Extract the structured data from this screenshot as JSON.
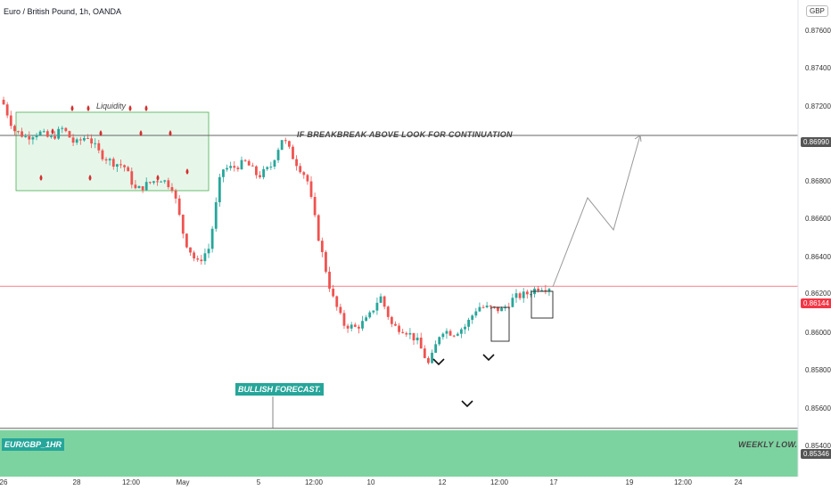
{
  "header": {
    "title": "Euro / British Pound, 1h, OANDA"
  },
  "currency_badge": "GBP",
  "colors": {
    "up": "#26a69a",
    "down": "#ef5350",
    "zone_green": "#7dd3a0",
    "zone_fill": "#e6f7ea",
    "projection": "#999999",
    "current": "#f23645"
  },
  "annotations": {
    "liquidity": "Liquidity",
    "breakout": "IF BREAKBREAK ABOVE LOOK FOR CONTINUATION",
    "forecast": "BULLISH FORECAST.",
    "pair": "EUR/GBP_1HR",
    "weekly_low": "WEEKLY LOW."
  },
  "price_badges": {
    "current": "0.86144",
    "resistance": "0.86990",
    "weekly_low": "0.85346"
  },
  "chart_data": {
    "type": "candlestick",
    "title": "Euro / British Pound, 1h, OANDA",
    "y_axis": {
      "range": [
        0.8534,
        0.877
      ],
      "ticks": [
        "0.87600",
        "0.87400",
        "0.87200",
        "0.86990",
        "0.86800",
        "0.86600",
        "0.86400",
        "0.86200",
        "0.86144",
        "0.86000",
        "0.85800",
        "0.85600",
        "0.85400",
        "0.85346"
      ]
    },
    "x_axis": {
      "ticks": [
        "26",
        "28",
        "12:00",
        "May",
        "5",
        "12:00",
        "10",
        "12",
        "12:00",
        "17",
        "19",
        "12:00",
        "24"
      ]
    },
    "levels": [
      {
        "name": "resistance",
        "value": 0.8699
      },
      {
        "name": "current",
        "value": 0.86144
      },
      {
        "name": "weekly_low",
        "value": 0.85346
      }
    ],
    "approx_path": [
      0.8719,
      0.8702,
      0.8698,
      0.8701,
      0.8697,
      0.8703,
      0.8694,
      0.8699,
      0.8689,
      0.8684,
      0.8682,
      0.8668,
      0.8672,
      0.8675,
      0.867,
      0.864,
      0.8627,
      0.8636,
      0.868,
      0.8681,
      0.8684,
      0.8676,
      0.8681,
      0.8698,
      0.8685,
      0.8675,
      0.864,
      0.861,
      0.8593,
      0.8591,
      0.8596,
      0.8609,
      0.8592,
      0.859,
      0.8584,
      0.857,
      0.859,
      0.8588,
      0.8592,
      0.8603,
      0.8602,
      0.8601,
      0.8608,
      0.861,
      0.8614,
      0.8614
    ],
    "projection": [
      0.8614,
      0.8664,
      0.8646,
      0.8699
    ],
    "grid": false,
    "legend": "none"
  }
}
